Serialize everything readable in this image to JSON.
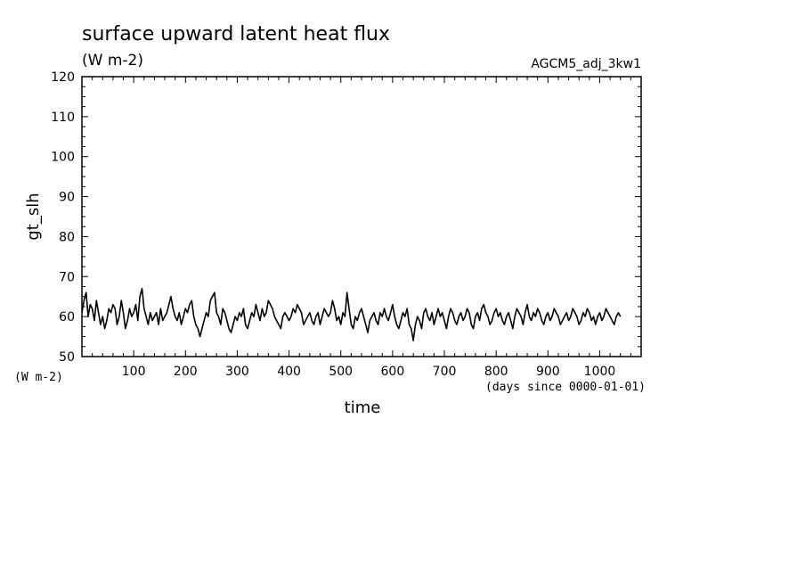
{
  "chart_data": {
    "type": "line",
    "title": "surface upward latent heat flux",
    "units": "(W m-2)",
    "run_label": "AGCM5_adj_3kw1",
    "ylabel": "gt_slh",
    "y_units": "(W m-2)",
    "xlabel": "time",
    "x_units": "(days since 0000-01-01)",
    "xlim": [
      0,
      1080
    ],
    "ylim": [
      50,
      120
    ],
    "x_ticks": [
      100,
      200,
      300,
      400,
      500,
      600,
      700,
      800,
      900,
      1000
    ],
    "y_ticks": [
      50,
      60,
      70,
      80,
      90,
      100,
      110,
      120
    ],
    "grid": false,
    "series": [
      {
        "x_start": 0,
        "x_step": 4,
        "values": [
          61,
          64,
          66,
          60,
          63,
          62,
          59,
          64,
          61,
          58,
          60,
          57,
          59,
          62,
          61,
          63,
          62,
          58,
          60,
          64,
          61,
          57,
          59,
          62,
          60,
          61,
          63,
          59,
          65,
          67,
          62,
          60,
          58,
          61,
          59,
          60,
          61,
          58,
          62,
          59,
          60,
          61,
          63,
          65,
          62,
          60,
          59,
          61,
          58,
          60,
          62,
          61,
          63,
          64,
          60,
          58,
          57,
          55,
          57,
          59,
          61,
          60,
          64,
          65,
          66,
          61,
          60,
          58,
          62,
          61,
          59,
          57,
          56,
          58,
          60,
          59,
          61,
          60,
          62,
          58,
          57,
          59,
          61,
          60,
          63,
          61,
          59,
          62,
          60,
          61,
          64,
          63,
          62,
          60,
          59,
          58,
          57,
          60,
          61,
          60,
          59,
          60,
          62,
          61,
          63,
          62,
          61,
          58,
          59,
          60,
          61,
          59,
          58,
          60,
          61,
          58,
          60,
          62,
          61,
          60,
          61,
          64,
          62,
          59,
          60,
          58,
          61,
          60,
          66,
          62,
          58,
          57,
          60,
          59,
          61,
          62,
          60,
          58,
          56,
          59,
          60,
          61,
          59,
          58,
          61,
          60,
          62,
          60,
          59,
          61,
          63,
          60,
          58,
          57,
          59,
          61,
          60,
          62,
          58,
          57,
          54,
          58,
          60,
          59,
          57,
          61,
          62,
          60,
          59,
          61,
          58,
          60,
          62,
          60,
          61,
          59,
          57,
          60,
          62,
          61,
          59,
          58,
          60,
          61,
          59,
          60,
          62,
          61,
          58,
          57,
          60,
          61,
          59,
          62,
          63,
          61,
          60,
          58,
          59,
          61,
          62,
          60,
          61,
          59,
          58,
          60,
          61,
          59,
          57,
          60,
          62,
          61,
          60,
          58,
          61,
          63,
          60,
          59,
          61,
          60,
          62,
          61,
          59,
          58,
          60,
          61,
          59,
          60,
          62,
          61,
          60,
          58,
          59,
          60,
          61,
          59,
          60,
          62,
          61,
          60,
          58,
          59,
          61,
          60,
          62,
          61,
          59,
          60,
          58,
          60,
          61,
          59,
          60,
          62,
          61,
          60,
          59,
          58,
          60,
          61,
          60
        ]
      }
    ]
  }
}
